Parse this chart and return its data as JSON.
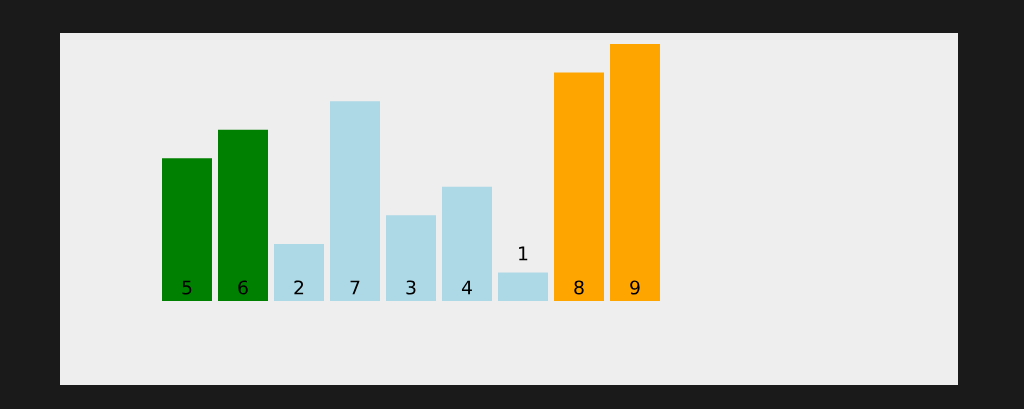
{
  "chart_data": {
    "type": "bar",
    "categories": [
      null,
      null,
      null,
      null,
      null,
      null,
      null,
      null,
      null
    ],
    "values": [
      5,
      6,
      2,
      7,
      3,
      4,
      1,
      8,
      9
    ],
    "colors": [
      "#008000",
      "#008000",
      "#add8e6",
      "#add8e6",
      "#add8e6",
      "#add8e6",
      "#add8e6",
      "#ffa500",
      "#ffa500"
    ],
    "data_labels": true
  }
}
